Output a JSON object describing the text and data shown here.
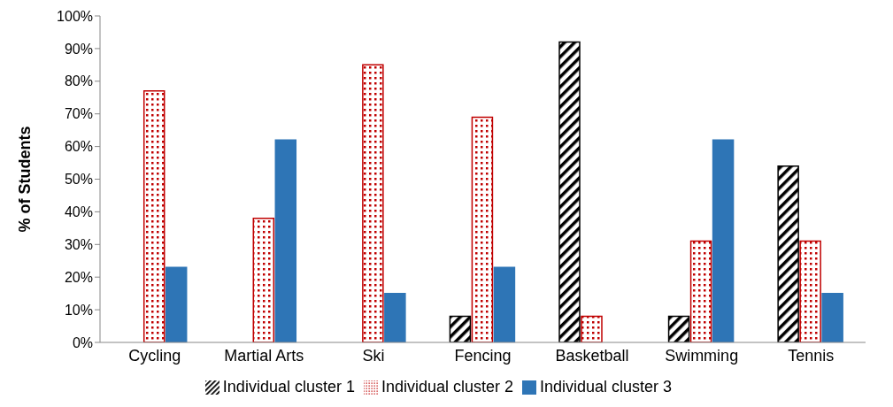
{
  "chart_data": {
    "type": "bar",
    "ylabel": "% of Students",
    "categories": [
      "Cycling",
      "Martial Arts",
      "Ski",
      "Fencing",
      "Basketball",
      "Swimming",
      "Tennis"
    ],
    "series": [
      {
        "name": "Individual cluster 1",
        "color": "#000000",
        "values": [
          null,
          null,
          null,
          8,
          92,
          8,
          54
        ]
      },
      {
        "name": "Individual cluster 2",
        "color": "#c00000",
        "values": [
          77,
          38,
          85,
          69,
          8,
          31,
          31
        ]
      },
      {
        "name": "Individual cluster 3",
        "color": "#2e75b6",
        "values": [
          23,
          62,
          15,
          23,
          null,
          62,
          15
        ]
      }
    ],
    "ylim": [
      0,
      100
    ],
    "yticks": [
      {
        "value": 0,
        "label": "0%"
      },
      {
        "value": 10,
        "label": "10%"
      },
      {
        "value": 20,
        "label": "20%"
      },
      {
        "value": 30,
        "label": "30%"
      },
      {
        "value": 40,
        "label": "40%"
      },
      {
        "value": 50,
        "label": "50%"
      },
      {
        "value": 60,
        "label": "60%"
      },
      {
        "value": 70,
        "label": "70%"
      },
      {
        "value": 80,
        "label": "80%"
      },
      {
        "value": 90,
        "label": "90%"
      },
      {
        "value": 100,
        "label": "100%"
      }
    ],
    "grid": false,
    "legend": "bottom"
  }
}
